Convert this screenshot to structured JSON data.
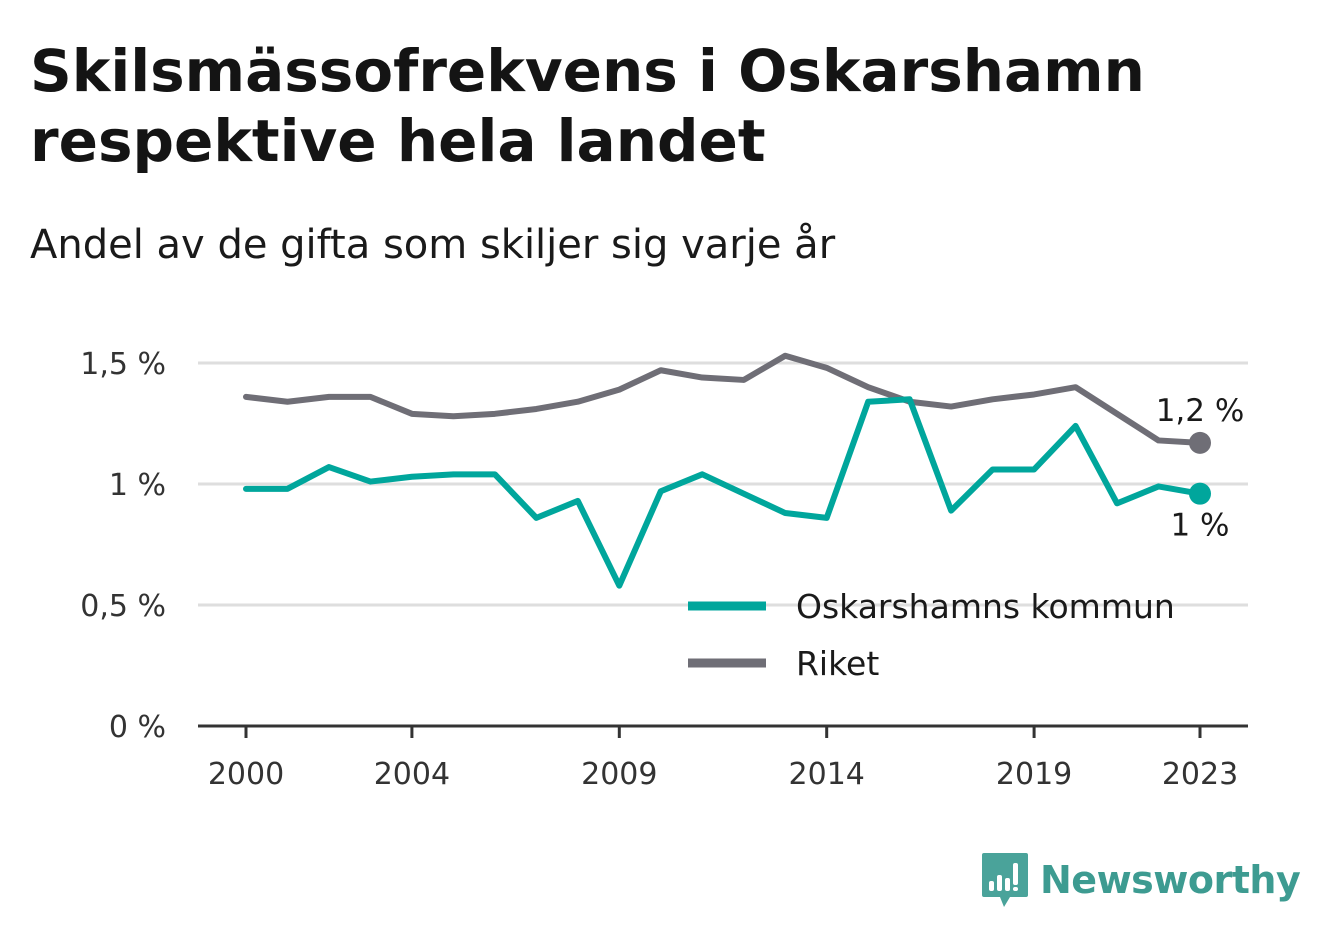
{
  "title": "Skilsmässofrekvens i Oskarshamn respektive hela landet",
  "subtitle": "Andel av de gifta som skiljer sig varje år",
  "brand": "Newsworthy",
  "colors": {
    "oskarshamn": "#00a69c",
    "riket": "#6f6e76",
    "grid": "#dedede",
    "axis": "#333333"
  },
  "chart_data": {
    "type": "line",
    "x": [
      2000,
      2001,
      2002,
      2003,
      2004,
      2005,
      2006,
      2007,
      2008,
      2009,
      2010,
      2011,
      2012,
      2013,
      2014,
      2015,
      2016,
      2017,
      2018,
      2019,
      2020,
      2021,
      2022,
      2023
    ],
    "x_tick_labels": [
      "2000",
      "2004",
      "2009",
      "2014",
      "2019",
      "2023"
    ],
    "y_ticks": [
      0,
      0.5,
      1,
      1.5
    ],
    "y_tick_labels": [
      "0 %",
      "0,5 %",
      "1 %",
      "1,5 %"
    ],
    "ylim": [
      0,
      1.5
    ],
    "grid": true,
    "legend_position": "bottom-right",
    "series": [
      {
        "name": "Oskarshamns kommun",
        "color": "#00a69c",
        "values": [
          0.98,
          0.98,
          1.07,
          1.01,
          1.03,
          1.04,
          1.04,
          0.86,
          0.93,
          0.58,
          0.97,
          1.04,
          0.96,
          0.88,
          0.86,
          1.34,
          1.35,
          0.89,
          1.06,
          1.06,
          1.24,
          0.92,
          0.99,
          0.96
        ],
        "end_label": "1 %"
      },
      {
        "name": "Riket",
        "color": "#6f6e76",
        "values": [
          1.36,
          1.34,
          1.36,
          1.36,
          1.29,
          1.28,
          1.29,
          1.31,
          1.34,
          1.39,
          1.47,
          1.44,
          1.43,
          1.53,
          1.48,
          1.4,
          1.34,
          1.32,
          1.35,
          1.37,
          1.4,
          1.29,
          1.18,
          1.17
        ],
        "end_label": "1,2 %"
      }
    ]
  }
}
